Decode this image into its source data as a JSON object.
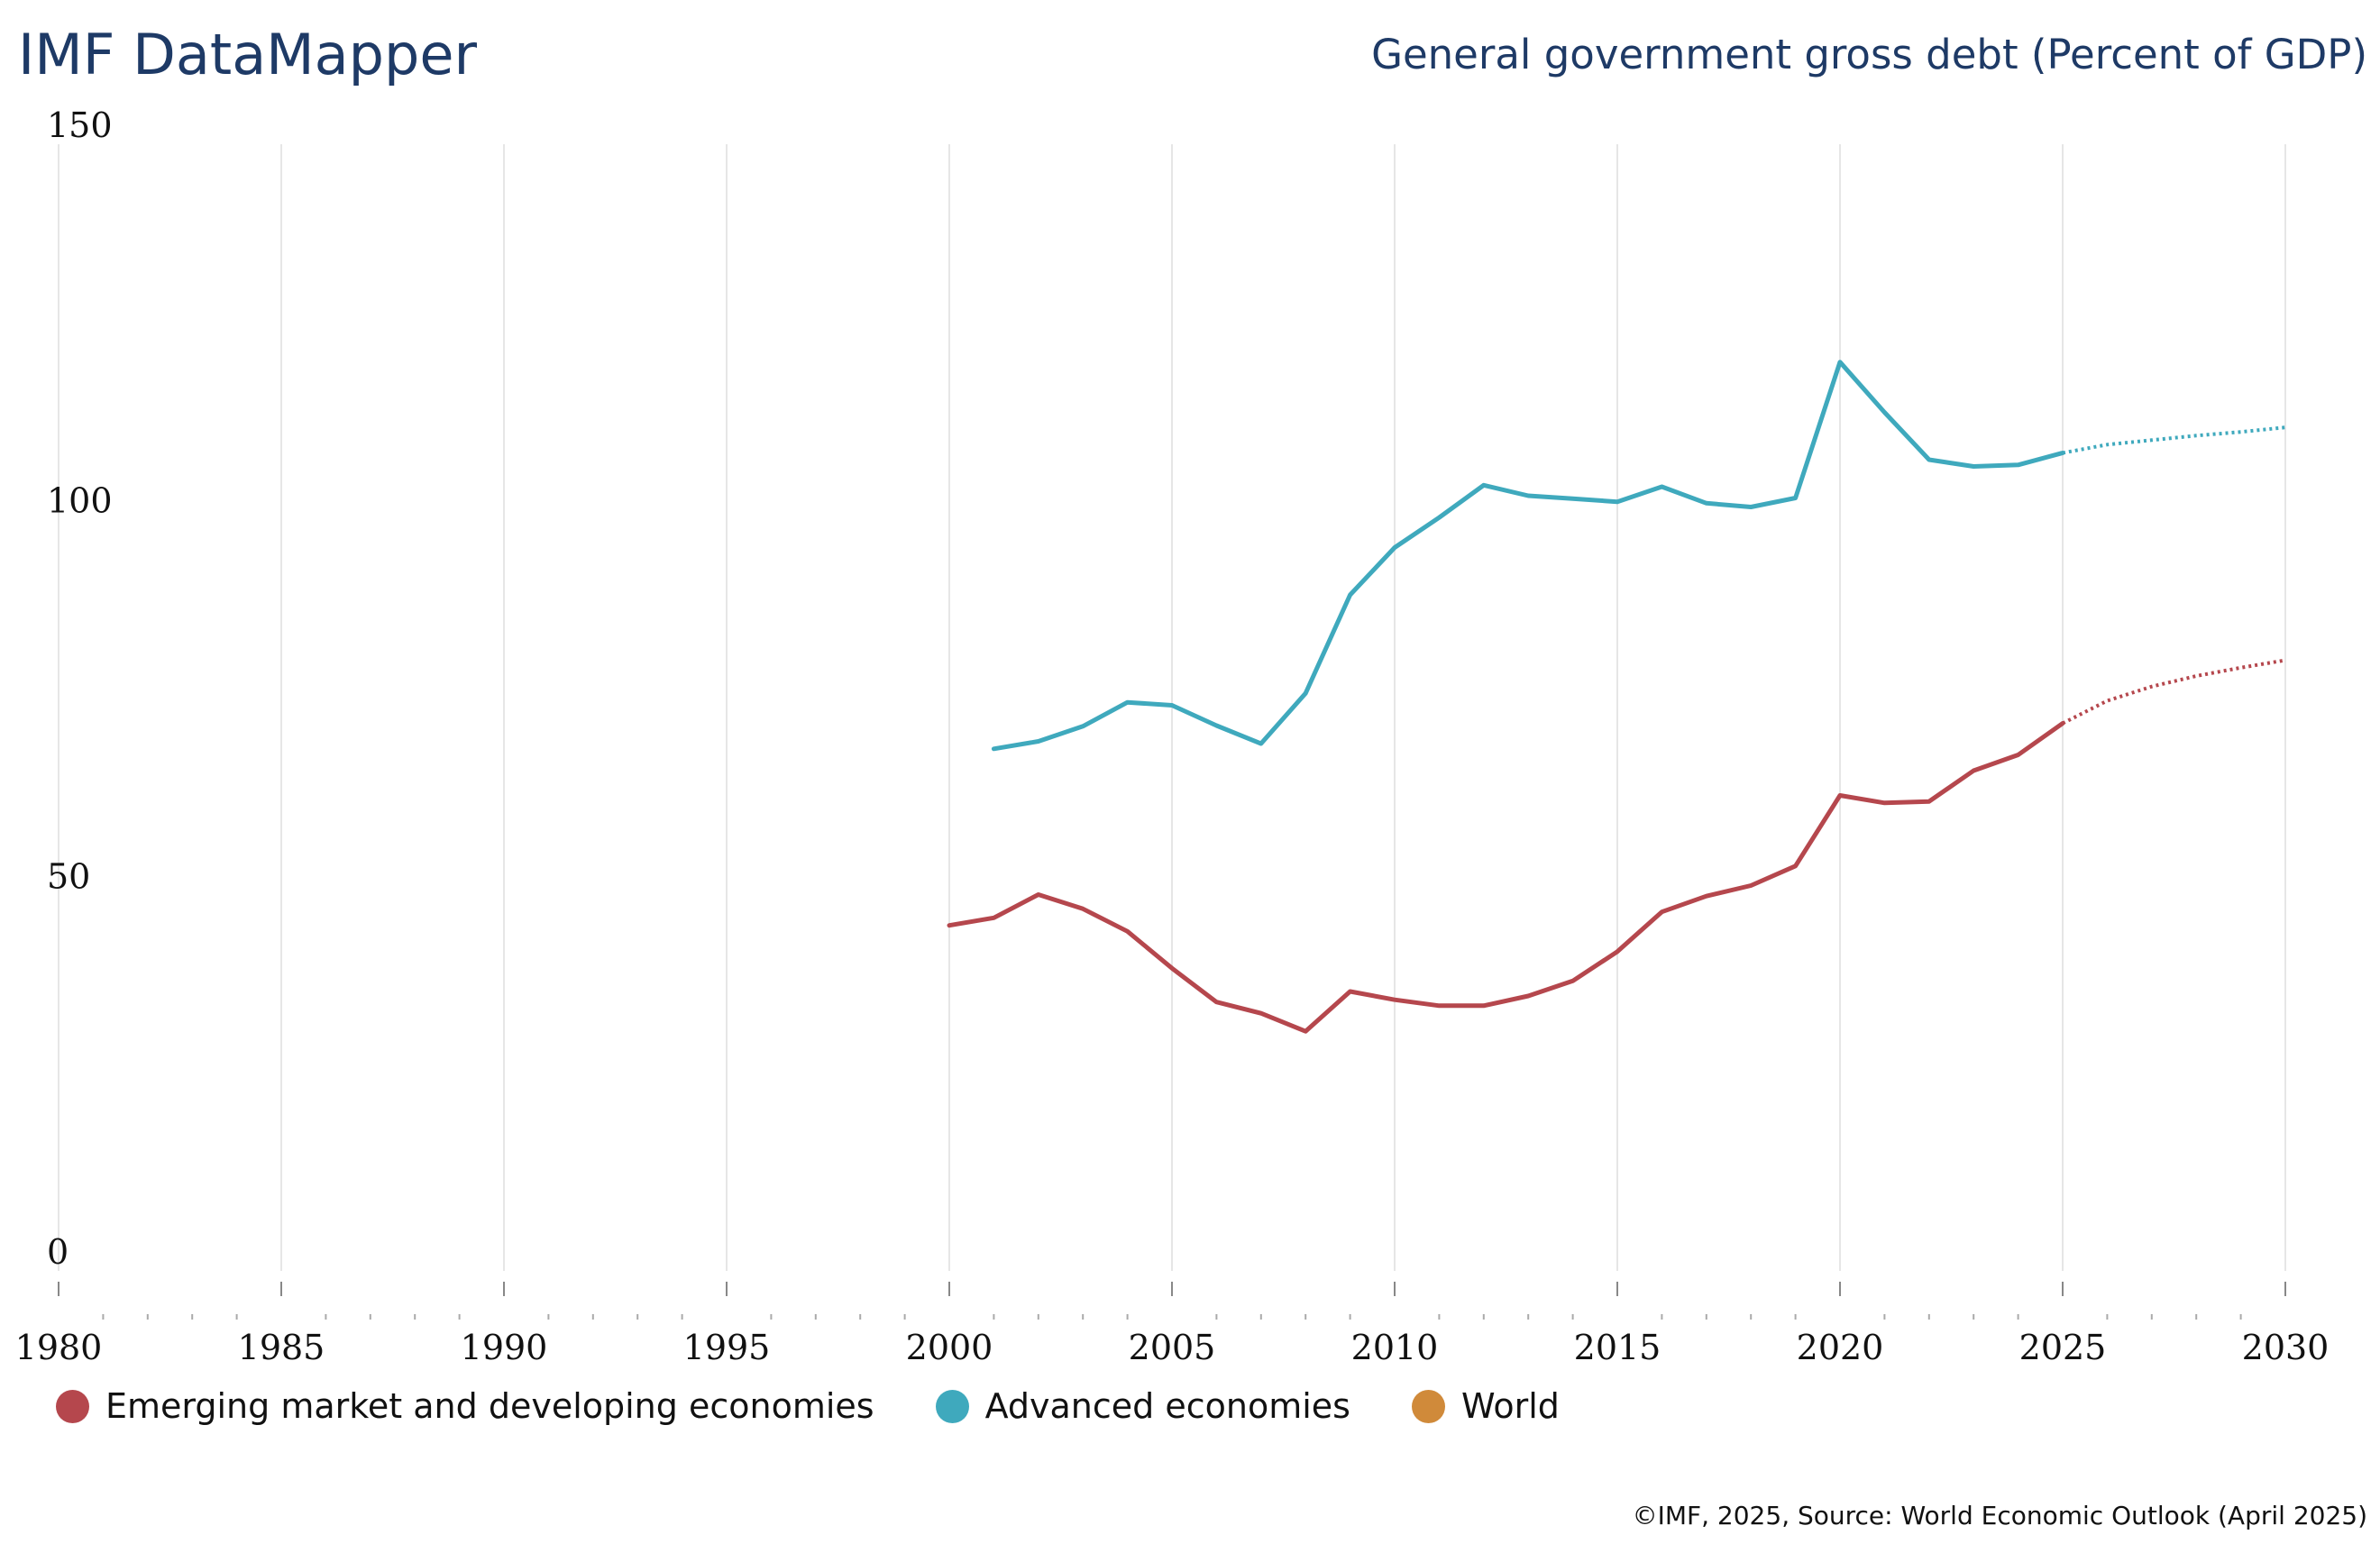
{
  "header": {
    "brand": "IMF DataMapper",
    "title": "General government gross debt (Percent of GDP)"
  },
  "footer": {
    "source": "©IMF, 2025, Source: World Economic Outlook (April 2025)"
  },
  "chart_data": {
    "type": "line",
    "title": "General government gross debt (Percent of GDP)",
    "xlabel": "",
    "ylabel": "",
    "xlim": [
      1980,
      2030
    ],
    "ylim": [
      0,
      150
    ],
    "x_ticks": [
      1980,
      1985,
      1990,
      1995,
      2000,
      2005,
      2010,
      2015,
      2020,
      2025,
      2030
    ],
    "y_ticks": [
      0,
      50,
      100,
      150
    ],
    "grid": "vertical",
    "legend_position": "bottom-left",
    "projection_start": 2025,
    "series": [
      {
        "name": "Emerging market and developing economies",
        "color": "#b5474d",
        "x": [
          2000,
          2001,
          2002,
          2003,
          2004,
          2005,
          2006,
          2007,
          2008,
          2009,
          2010,
          2011,
          2012,
          2013,
          2014,
          2015,
          2016,
          2017,
          2018,
          2019,
          2020,
          2021,
          2022,
          2023,
          2024,
          2025,
          2026,
          2027,
          2028,
          2029,
          2030
        ],
        "values": [
          46.0,
          47.0,
          50.1,
          48.2,
          45.2,
          40.3,
          35.8,
          34.3,
          31.9,
          37.2,
          36.1,
          35.3,
          35.3,
          36.6,
          38.6,
          42.5,
          47.8,
          49.9,
          51.3,
          53.9,
          63.3,
          62.3,
          62.5,
          66.6,
          68.7,
          72.9,
          75.9,
          77.8,
          79.2,
          80.3,
          81.3
        ]
      },
      {
        "name": "Advanced economies",
        "color": "#3fa9bd",
        "x": [
          2001,
          2002,
          2003,
          2004,
          2005,
          2006,
          2007,
          2008,
          2009,
          2010,
          2011,
          2012,
          2013,
          2014,
          2015,
          2016,
          2017,
          2018,
          2019,
          2020,
          2021,
          2022,
          2023,
          2024,
          2025,
          2026,
          2027,
          2028,
          2029,
          2030
        ],
        "values": [
          69.5,
          70.5,
          72.5,
          75.7,
          75.3,
          72.6,
          70.2,
          76.9,
          90.0,
          96.3,
          100.3,
          104.6,
          103.2,
          102.8,
          102.4,
          104.4,
          102.2,
          101.7,
          102.9,
          121.0,
          114.3,
          108.0,
          107.1,
          107.3,
          108.9,
          110.0,
          110.6,
          111.2,
          111.7,
          112.3
        ]
      },
      {
        "name": "World",
        "color": "#d08a3a",
        "x": [],
        "values": []
      }
    ]
  }
}
